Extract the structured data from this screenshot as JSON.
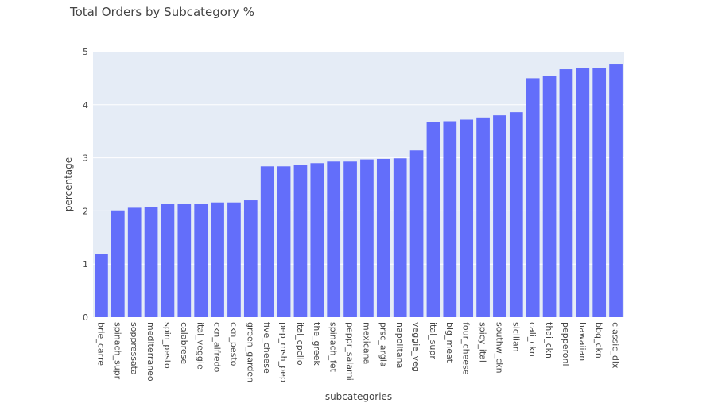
{
  "chart_data": {
    "type": "bar",
    "title": "Total Orders by Subcategory %",
    "xlabel": "subcategories",
    "ylabel": "percentage",
    "ylim": [
      0,
      5
    ],
    "yticks": [
      0,
      1,
      2,
      3,
      4,
      5
    ],
    "grid": true,
    "categories": [
      "brie_carre",
      "spinach_supr",
      "soppressata",
      "mediterraneo",
      "spin_pesto",
      "calabrese",
      "ital_veggie",
      "ckn_alfredo",
      "ckn_pesto",
      "green_garden",
      "five_cheese",
      "pep_msh_pep",
      "ital_cpcllo",
      "the_greek",
      "spinach_fet",
      "peppr_salami",
      "mexicana",
      "prsc_argla",
      "napolitana",
      "veggie_veg",
      "ital_supr",
      "big_meat",
      "four_cheese",
      "spicy_ital",
      "southw_ckn",
      "sicilian",
      "cali_ckn",
      "thai_ckn",
      "pepperoni",
      "hawaiian",
      "bbq_ckn",
      "classic_dlx"
    ],
    "values": [
      1.19,
      2.01,
      2.06,
      2.07,
      2.13,
      2.13,
      2.14,
      2.16,
      2.16,
      2.2,
      2.84,
      2.84,
      2.86,
      2.9,
      2.93,
      2.93,
      2.97,
      2.98,
      2.99,
      3.14,
      3.67,
      3.69,
      3.72,
      3.76,
      3.8,
      3.86,
      4.5,
      4.54,
      4.67,
      4.69,
      4.69,
      4.76
    ],
    "colors": {
      "bar": "#636efa",
      "plot_bg": "#e5ecf6",
      "grid": "#ffffff"
    }
  }
}
